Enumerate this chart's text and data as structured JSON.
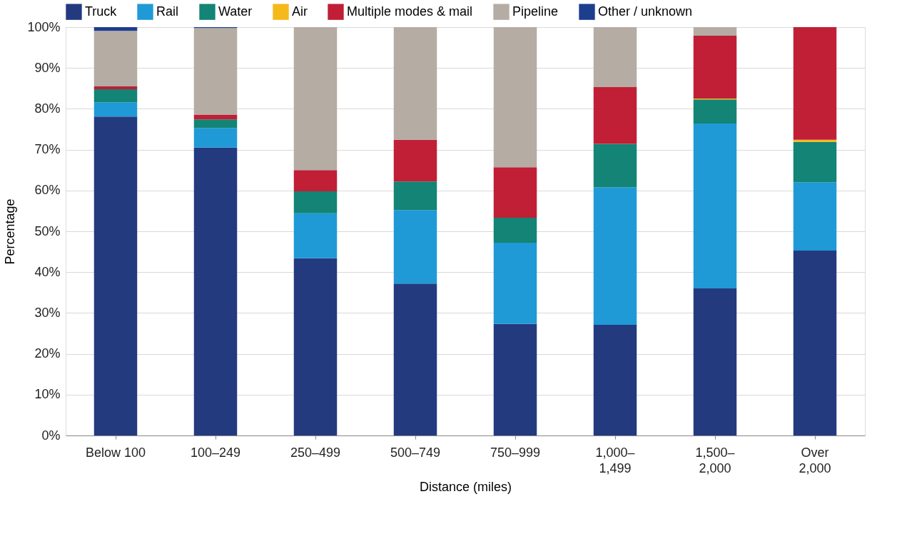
{
  "chart_data": {
    "type": "bar",
    "stacked": true,
    "xlabel": "Distance (miles)",
    "ylabel": "Percentage",
    "categories": [
      "Below 100",
      "100–249",
      "250–499",
      "500–749",
      "750–999",
      "1,000–1,499",
      "1,500–2,000",
      "Over 2,000"
    ],
    "series": [
      {
        "name": "Truck",
        "color": "#243a7f",
        "values": [
          78.1,
          70.5,
          43.4,
          37.2,
          27.3,
          27.1,
          36.0,
          45.3
        ]
      },
      {
        "name": "Rail",
        "color": "#1f9ad6",
        "values": [
          3.5,
          4.8,
          11.0,
          18.0,
          19.9,
          33.7,
          40.4,
          16.7
        ]
      },
      {
        "name": "Water",
        "color": "#138475",
        "values": [
          3.2,
          2.1,
          5.4,
          7.0,
          6.1,
          10.6,
          5.9,
          9.9
        ]
      },
      {
        "name": "Air",
        "color": "#f5b91a",
        "values": [
          0.0,
          0.0,
          0.0,
          0.0,
          0.0,
          0.0,
          0.2,
          0.5
        ]
      },
      {
        "name": "Multiple modes & mail",
        "color": "#c01f35",
        "values": [
          0.7,
          1.2,
          5.2,
          10.2,
          12.4,
          13.9,
          15.4,
          27.6
        ]
      },
      {
        "name": "Pipeline",
        "color": "#b5aca3",
        "values": [
          13.6,
          21.2,
          35.0,
          27.6,
          34.3,
          14.7,
          2.1,
          0.0
        ]
      },
      {
        "name": "Other / unknown",
        "color": "#1d3d8f",
        "values": [
          0.9,
          0.2,
          0.0,
          0.0,
          0.0,
          0.0,
          0.0,
          0.0
        ]
      }
    ],
    "ylim": [
      0,
      100
    ],
    "yticks": [
      {
        "value": 0,
        "label": "0%"
      },
      {
        "value": 10,
        "label": "10%"
      },
      {
        "value": 20,
        "label": "20%"
      },
      {
        "value": 30,
        "label": "30%"
      },
      {
        "value": 40,
        "label": "40%"
      },
      {
        "value": 50,
        "label": "50%"
      },
      {
        "value": 60,
        "label": "60%"
      },
      {
        "value": 70,
        "label": "70%"
      },
      {
        "value": 80,
        "label": "80%"
      },
      {
        "value": 90,
        "label": "90%"
      },
      {
        "value": 100,
        "label": "100%"
      }
    ],
    "grid": "y",
    "legend": "top"
  }
}
